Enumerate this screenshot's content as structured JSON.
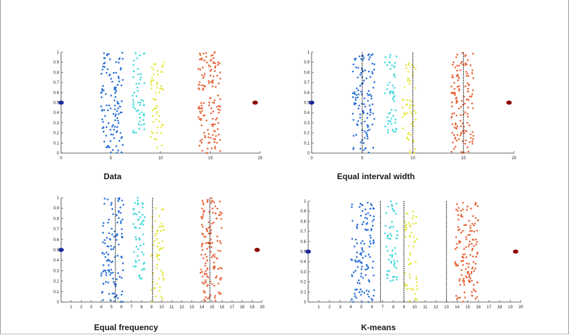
{
  "chart_data": [
    {
      "type": "scatter",
      "title": "Data",
      "xlim": [
        0,
        20
      ],
      "ylim": [
        0,
        1
      ],
      "x_ticks": [
        "0",
        "5",
        "10",
        "15",
        "20"
      ],
      "y_ticks": [
        "0",
        "0.1",
        "0.2",
        "0.3",
        "0.4",
        "0.5",
        "0.6",
        "0.7",
        "0.8",
        "0.9",
        "1"
      ],
      "grid": false,
      "series": [
        {
          "color": "#2a6fd8",
          "x_range": [
            4.0,
            6.2
          ],
          "y_range": [
            0,
            1
          ],
          "count": 120
        },
        {
          "color": "#3fd8dc",
          "x_range": [
            7.2,
            8.4
          ],
          "y_range": [
            0.2,
            1
          ],
          "count": 55
        },
        {
          "color": "#e6e63a",
          "x_range": [
            9.0,
            10.3
          ],
          "y_range": [
            0,
            0.9
          ],
          "count": 55
        },
        {
          "color": "#e8653a",
          "x_range": [
            13.8,
            16.0
          ],
          "y_range": [
            0,
            1
          ],
          "count": 140
        }
      ],
      "outliers": [
        {
          "x": 0,
          "y": 0.5,
          "color": "#1a2a9a"
        },
        {
          "x": 19.5,
          "y": 0.5,
          "color": "#8b0000"
        }
      ],
      "cut_points": []
    },
    {
      "type": "scatter",
      "title": "Equal interval width",
      "xlim": [
        0,
        20
      ],
      "ylim": [
        0,
        1
      ],
      "x_ticks": [
        "0",
        "5",
        "10",
        "15",
        "20"
      ],
      "y_ticks": [
        "0",
        "0.1",
        "0.2",
        "0.3",
        "0.4",
        "0.5",
        "0.6",
        "0.7",
        "0.8",
        "0.9",
        "1"
      ],
      "grid": false,
      "series": [
        {
          "color": "#2a6fd8",
          "x_range": [
            4.0,
            6.2
          ],
          "y_range": [
            0,
            1
          ],
          "count": 120
        },
        {
          "color": "#3fd8dc",
          "x_range": [
            7.2,
            8.4
          ],
          "y_range": [
            0.2,
            1
          ],
          "count": 55
        },
        {
          "color": "#e6e63a",
          "x_range": [
            9.0,
            10.3
          ],
          "y_range": [
            0,
            0.9
          ],
          "count": 55
        },
        {
          "color": "#e8653a",
          "x_range": [
            13.8,
            16.0
          ],
          "y_range": [
            0,
            1
          ],
          "count": 140
        }
      ],
      "outliers": [
        {
          "x": 0,
          "y": 0.5,
          "color": "#1a2a9a"
        },
        {
          "x": 19.5,
          "y": 0.5,
          "color": "#8b0000"
        }
      ],
      "cut_points": [
        5,
        10,
        15
      ]
    },
    {
      "type": "scatter",
      "title": "Equal frequency",
      "xlim": [
        0,
        20
      ],
      "ylim": [
        0,
        1
      ],
      "x_ticks": [
        "1",
        "2",
        "3",
        "4",
        "5",
        "6",
        "7",
        "8",
        "9",
        "10",
        "11",
        "12",
        "13",
        "14",
        "15",
        "16",
        "17",
        "18",
        "19",
        "20"
      ],
      "y_ticks": [
        "0",
        "0.1",
        "0.2",
        "0.3",
        "0.4",
        "0.5",
        "0.6",
        "0.7",
        "0.8",
        "0.9",
        "1"
      ],
      "grid": false,
      "series": [
        {
          "color": "#2a6fd8",
          "x_range": [
            4.0,
            6.2
          ],
          "y_range": [
            0,
            1
          ],
          "count": 120
        },
        {
          "color": "#3fd8dc",
          "x_range": [
            7.2,
            8.4
          ],
          "y_range": [
            0.2,
            1
          ],
          "count": 55
        },
        {
          "color": "#e6e63a",
          "x_range": [
            9.0,
            10.3
          ],
          "y_range": [
            0,
            0.9
          ],
          "count": 55
        },
        {
          "color": "#e8653a",
          "x_range": [
            13.8,
            16.0
          ],
          "y_range": [
            0,
            1
          ],
          "count": 140
        }
      ],
      "outliers": [
        {
          "x": 0,
          "y": 0.5,
          "color": "#1a2a9a"
        },
        {
          "x": 19.5,
          "y": 0.5,
          "color": "#8b0000"
        }
      ],
      "cut_points": [
        5.4,
        9.1,
        14.8
      ]
    },
    {
      "type": "scatter",
      "title": "K-means",
      "xlim": [
        0,
        20
      ],
      "ylim": [
        0,
        1
      ],
      "x_ticks": [
        "1",
        "2",
        "3",
        "4",
        "5",
        "6",
        "7",
        "8",
        "9",
        "10",
        "11",
        "12",
        "13",
        "14",
        "15",
        "16",
        "17",
        "18",
        "19",
        "20"
      ],
      "y_ticks": [
        "0",
        "0.1",
        "0.2",
        "0.3",
        "0.4",
        "0.5",
        "0.6",
        "0.7",
        "0.8",
        "0.9",
        "1"
      ],
      "grid": false,
      "series": [
        {
          "color": "#2a6fd8",
          "x_range": [
            4.0,
            6.2
          ],
          "y_range": [
            0,
            1
          ],
          "count": 120
        },
        {
          "color": "#3fd8dc",
          "x_range": [
            7.2,
            8.4
          ],
          "y_range": [
            0.2,
            1
          ],
          "count": 55
        },
        {
          "color": "#e6e63a",
          "x_range": [
            9.0,
            10.3
          ],
          "y_range": [
            0,
            0.9
          ],
          "count": 55
        },
        {
          "color": "#e8653a",
          "x_range": [
            13.8,
            16.0
          ],
          "y_range": [
            0,
            1
          ],
          "count": 140
        }
      ],
      "outliers": [
        {
          "x": 0,
          "y": 0.5,
          "color": "#1a2a9a"
        },
        {
          "x": 19.5,
          "y": 0.5,
          "color": "#8b0000"
        }
      ],
      "cut_points": [
        6.8,
        9.0,
        13.0
      ]
    }
  ]
}
